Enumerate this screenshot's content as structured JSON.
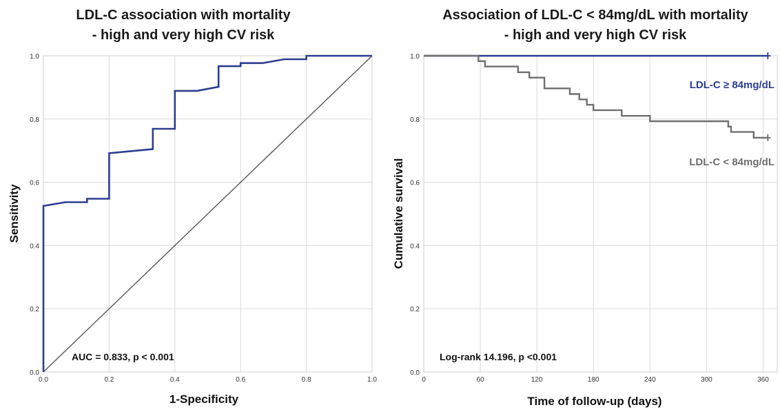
{
  "chart_data": [
    {
      "type": "line",
      "title": "LDL-C association with mortality",
      "subtitle": "- high and very high CV risk",
      "xlabel": "1-Specificity",
      "ylabel": "Sensitivity",
      "xlim": [
        0,
        1
      ],
      "ylim": [
        0,
        1
      ],
      "x_ticks": [
        "0.0",
        "0.2",
        "0.4",
        "0.6",
        "0.8",
        "1.0"
      ],
      "y_ticks": [
        "0.0",
        "0.2",
        "0.4",
        "0.6",
        "0.8",
        "1.0"
      ],
      "grid": true,
      "annotation": "AUC = 0.833, p < 0.001",
      "colors": {
        "roc": "#2b3d8f",
        "reference": "#555555",
        "grid": "#d9d9d9"
      },
      "series": [
        {
          "x": [
            0.0,
            0.0,
            0.067,
            0.133,
            0.133,
            0.2,
            0.2,
            0.333,
            0.333,
            0.4,
            0.4,
            0.467,
            0.533,
            0.533,
            0.6,
            0.6,
            0.667,
            0.733,
            0.8,
            0.8,
            1.0
          ],
          "y": [
            0.0,
            0.525,
            0.537,
            0.537,
            0.548,
            0.548,
            0.692,
            0.705,
            0.769,
            0.769,
            0.889,
            0.889,
            0.902,
            0.967,
            0.967,
            0.977,
            0.977,
            0.989,
            0.989,
            1.0,
            1.0
          ]
        },
        {
          "x": [
            0,
            1
          ],
          "y": [
            0,
            1
          ]
        }
      ]
    },
    {
      "type": "line",
      "title": "Association of LDL-C < 84mg/dL with mortality",
      "subtitle": "- high and very high CV risk",
      "xlabel": "Time of follow-up (days)",
      "ylabel": "Cumulative survival",
      "xlim": [
        0,
        375
      ],
      "ylim": [
        0,
        1
      ],
      "x_ticks": [
        0,
        60,
        120,
        180,
        240,
        300,
        360
      ],
      "y_ticks": [
        "0.0",
        "0.2",
        "0.4",
        "0.6",
        "0.8",
        "1.0"
      ],
      "grid": true,
      "annotation": "Log-rank 14.196, p <0.001",
      "colors": {
        "grid": "#d9d9d9"
      },
      "series": [
        {
          "name": "LDL-C ≥ 84mg/dL",
          "color": "#2b3d8f",
          "x": [
            0,
            365
          ],
          "y": [
            1.0,
            1.0
          ]
        },
        {
          "name": "LDL-C < 84mg/dL",
          "color": "#6e6e6e",
          "x": [
            0,
            58,
            58,
            65,
            65,
            80,
            80,
            100,
            100,
            112,
            112,
            128,
            128,
            155,
            155,
            165,
            165,
            173,
            173,
            180,
            180,
            210,
            210,
            240,
            240,
            323,
            323,
            326,
            326,
            350,
            350,
            365
          ],
          "y": [
            1.0,
            1.0,
            0.983,
            0.983,
            0.966,
            0.966,
            0.966,
            0.966,
            0.948,
            0.948,
            0.931,
            0.931,
            0.897,
            0.897,
            0.879,
            0.879,
            0.862,
            0.862,
            0.845,
            0.845,
            0.828,
            0.828,
            0.81,
            0.81,
            0.793,
            0.793,
            0.776,
            0.776,
            0.759,
            0.759,
            0.741,
            0.741
          ]
        }
      ],
      "censor_marks": [
        {
          "series": 0,
          "x": 365,
          "y": 1.0
        },
        {
          "series": 1,
          "x": 365,
          "y": 0.741
        }
      ]
    }
  ]
}
